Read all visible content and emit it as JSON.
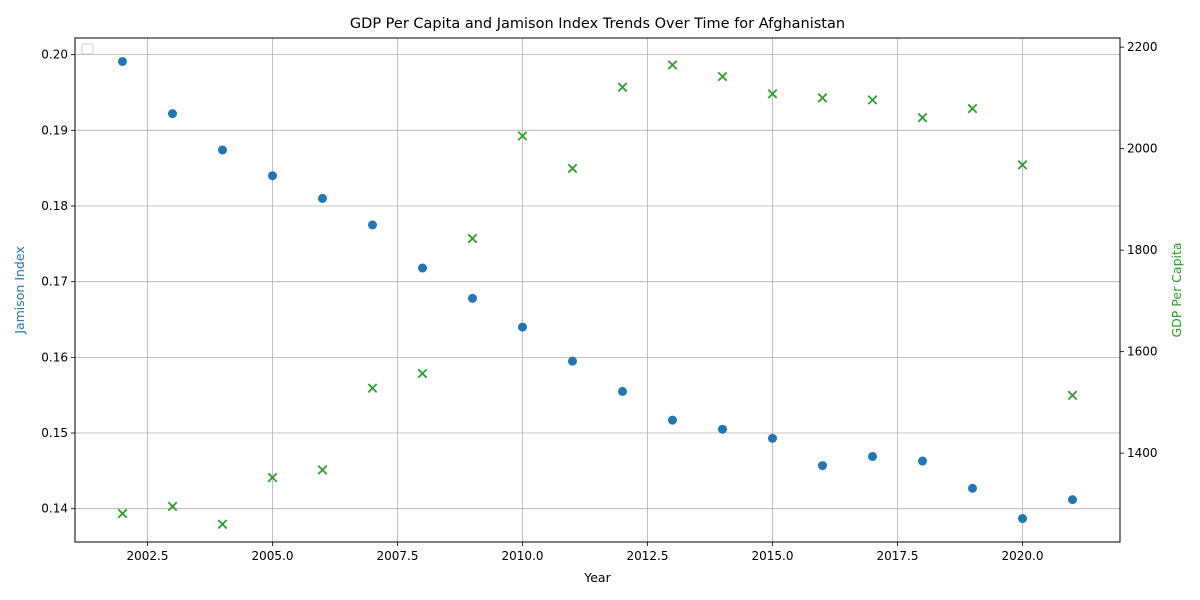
{
  "chart_data": {
    "type": "scatter",
    "title": "GDP Per Capita and Jamison Index Trends Over Time for Afghanistan",
    "xlabel": "Year",
    "ylabel_left": "Jamison Index",
    "ylabel_right": "GDP Per Capita",
    "xlim": [
      2001.05,
      2021.95
    ],
    "ylim_left": [
      0.1356,
      0.2022
    ],
    "ylim_right": [
      1225,
      2218
    ],
    "x_ticks": [
      2002.5,
      2005.0,
      2007.5,
      2010.0,
      2012.5,
      2015.0,
      2017.5,
      2020.0
    ],
    "x_tick_labels": [
      "2002.5",
      "2005.0",
      "2007.5",
      "2010.0",
      "2012.5",
      "2015.0",
      "2017.5",
      "2020.0"
    ],
    "y_left_ticks": [
      0.14,
      0.15,
      0.16,
      0.17,
      0.18,
      0.19,
      0.2
    ],
    "y_left_tick_labels": [
      "0.14",
      "0.15",
      "0.16",
      "0.17",
      "0.18",
      "0.19",
      "0.20"
    ],
    "y_right_ticks": [
      1400,
      1600,
      1800,
      2000,
      2200
    ],
    "y_right_tick_labels": [
      "1400",
      "1600",
      "1800",
      "2000",
      "2200"
    ],
    "grid": true,
    "legend": "top-left",
    "x": [
      2002,
      2003,
      2004,
      2005,
      2006,
      2007,
      2008,
      2009,
      2010,
      2011,
      2012,
      2013,
      2014,
      2015,
      2016,
      2017,
      2018,
      2019,
      2020,
      2021
    ],
    "series": [
      {
        "axis": "left",
        "marker": "circle",
        "color": "#1f77b4",
        "values": [
          0.1991,
          0.1922,
          0.1874,
          0.184,
          0.181,
          0.1775,
          0.1718,
          0.1678,
          0.164,
          0.1595,
          0.1555,
          0.1517,
          0.1505,
          0.1493,
          0.1457,
          0.1469,
          0.1463,
          0.1427,
          0.1387,
          0.1412
        ]
      },
      {
        "axis": "right",
        "marker": "x",
        "color": "#2ca02c",
        "values": [
          1281,
          1295,
          1260,
          1352,
          1367,
          1528,
          1557,
          1823,
          2025,
          1961,
          2121,
          2165,
          2142,
          2108,
          2100,
          2096,
          2061,
          2079,
          1968,
          1514
        ]
      }
    ]
  }
}
